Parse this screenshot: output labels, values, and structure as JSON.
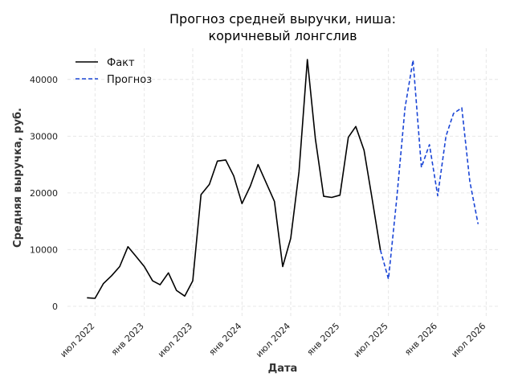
{
  "chart_data": {
    "type": "line",
    "title": "Прогноз средней выручки, ниша:",
    "title_line2": "коричневый лонгслив",
    "xlabel": "Дата",
    "ylabel": "Средняя выручка, руб.",
    "ylim": [
      -2000,
      45500
    ],
    "xlim": [
      "2022-03-20",
      "2026-08-20"
    ],
    "yticks": [
      0,
      10000,
      20000,
      30000,
      40000
    ],
    "ytick_labels": [
      "0",
      "10000",
      "20000",
      "30000",
      "40000"
    ],
    "xticks": [
      "2022-07-01",
      "2023-01-01",
      "2023-07-01",
      "2024-01-01",
      "2024-07-01",
      "2025-01-01",
      "2025-07-01",
      "2026-01-01",
      "2026-07-01"
    ],
    "xtick_labels": [
      "июл 2022",
      "янв 2023",
      "июл 2023",
      "янв 2024",
      "июл 2024",
      "янв 2025",
      "июл 2025",
      "янв 2026",
      "июл 2026"
    ],
    "grid": true,
    "legend_position": "top-left",
    "series": [
      {
        "name": "Факт",
        "color": "#000000",
        "style": "solid",
        "points": [
          [
            "2022-06-01",
            1500
          ],
          [
            "2022-07-01",
            1400
          ],
          [
            "2022-08-01",
            4000
          ],
          [
            "2022-09-01",
            5400
          ],
          [
            "2022-10-01",
            7000
          ],
          [
            "2022-11-01",
            10500
          ],
          [
            "2022-12-01",
            8800
          ],
          [
            "2023-01-01",
            7000
          ],
          [
            "2023-02-01",
            4500
          ],
          [
            "2023-03-01",
            3800
          ],
          [
            "2023-04-01",
            5900
          ],
          [
            "2023-05-01",
            2800
          ],
          [
            "2023-06-01",
            1800
          ],
          [
            "2023-07-01",
            4500
          ],
          [
            "2023-08-01",
            19700
          ],
          [
            "2023-09-01",
            21500
          ],
          [
            "2023-10-01",
            25600
          ],
          [
            "2023-11-01",
            25800
          ],
          [
            "2023-12-01",
            23000
          ],
          [
            "2024-01-01",
            18100
          ],
          [
            "2024-02-01",
            21200
          ],
          [
            "2024-03-01",
            25000
          ],
          [
            "2024-04-01",
            21700
          ],
          [
            "2024-05-01",
            18500
          ],
          [
            "2024-06-01",
            7000
          ],
          [
            "2024-07-01",
            12000
          ],
          [
            "2024-08-01",
            23700
          ],
          [
            "2024-09-01",
            43500
          ],
          [
            "2024-10-01",
            29500
          ],
          [
            "2024-11-01",
            19400
          ],
          [
            "2024-12-01",
            19200
          ],
          [
            "2025-01-01",
            19600
          ],
          [
            "2025-02-01",
            29800
          ],
          [
            "2025-03-01",
            31700
          ],
          [
            "2025-04-01",
            27500
          ],
          [
            "2025-05-01",
            19000
          ],
          [
            "2025-06-01",
            9900
          ]
        ]
      },
      {
        "name": "Прогноз",
        "color": "#1a45d6",
        "style": "dashed",
        "points": [
          [
            "2025-06-01",
            9900
          ],
          [
            "2025-07-01",
            4800
          ],
          [
            "2025-08-01",
            19000
          ],
          [
            "2025-09-01",
            35000
          ],
          [
            "2025-10-01",
            43400
          ],
          [
            "2025-11-01",
            24500
          ],
          [
            "2025-12-01",
            28500
          ],
          [
            "2026-01-01",
            19500
          ],
          [
            "2026-02-01",
            30000
          ],
          [
            "2026-03-01",
            34000
          ],
          [
            "2026-04-01",
            35000
          ],
          [
            "2026-05-01",
            22000
          ],
          [
            "2026-06-01",
            14500
          ]
        ]
      }
    ]
  }
}
